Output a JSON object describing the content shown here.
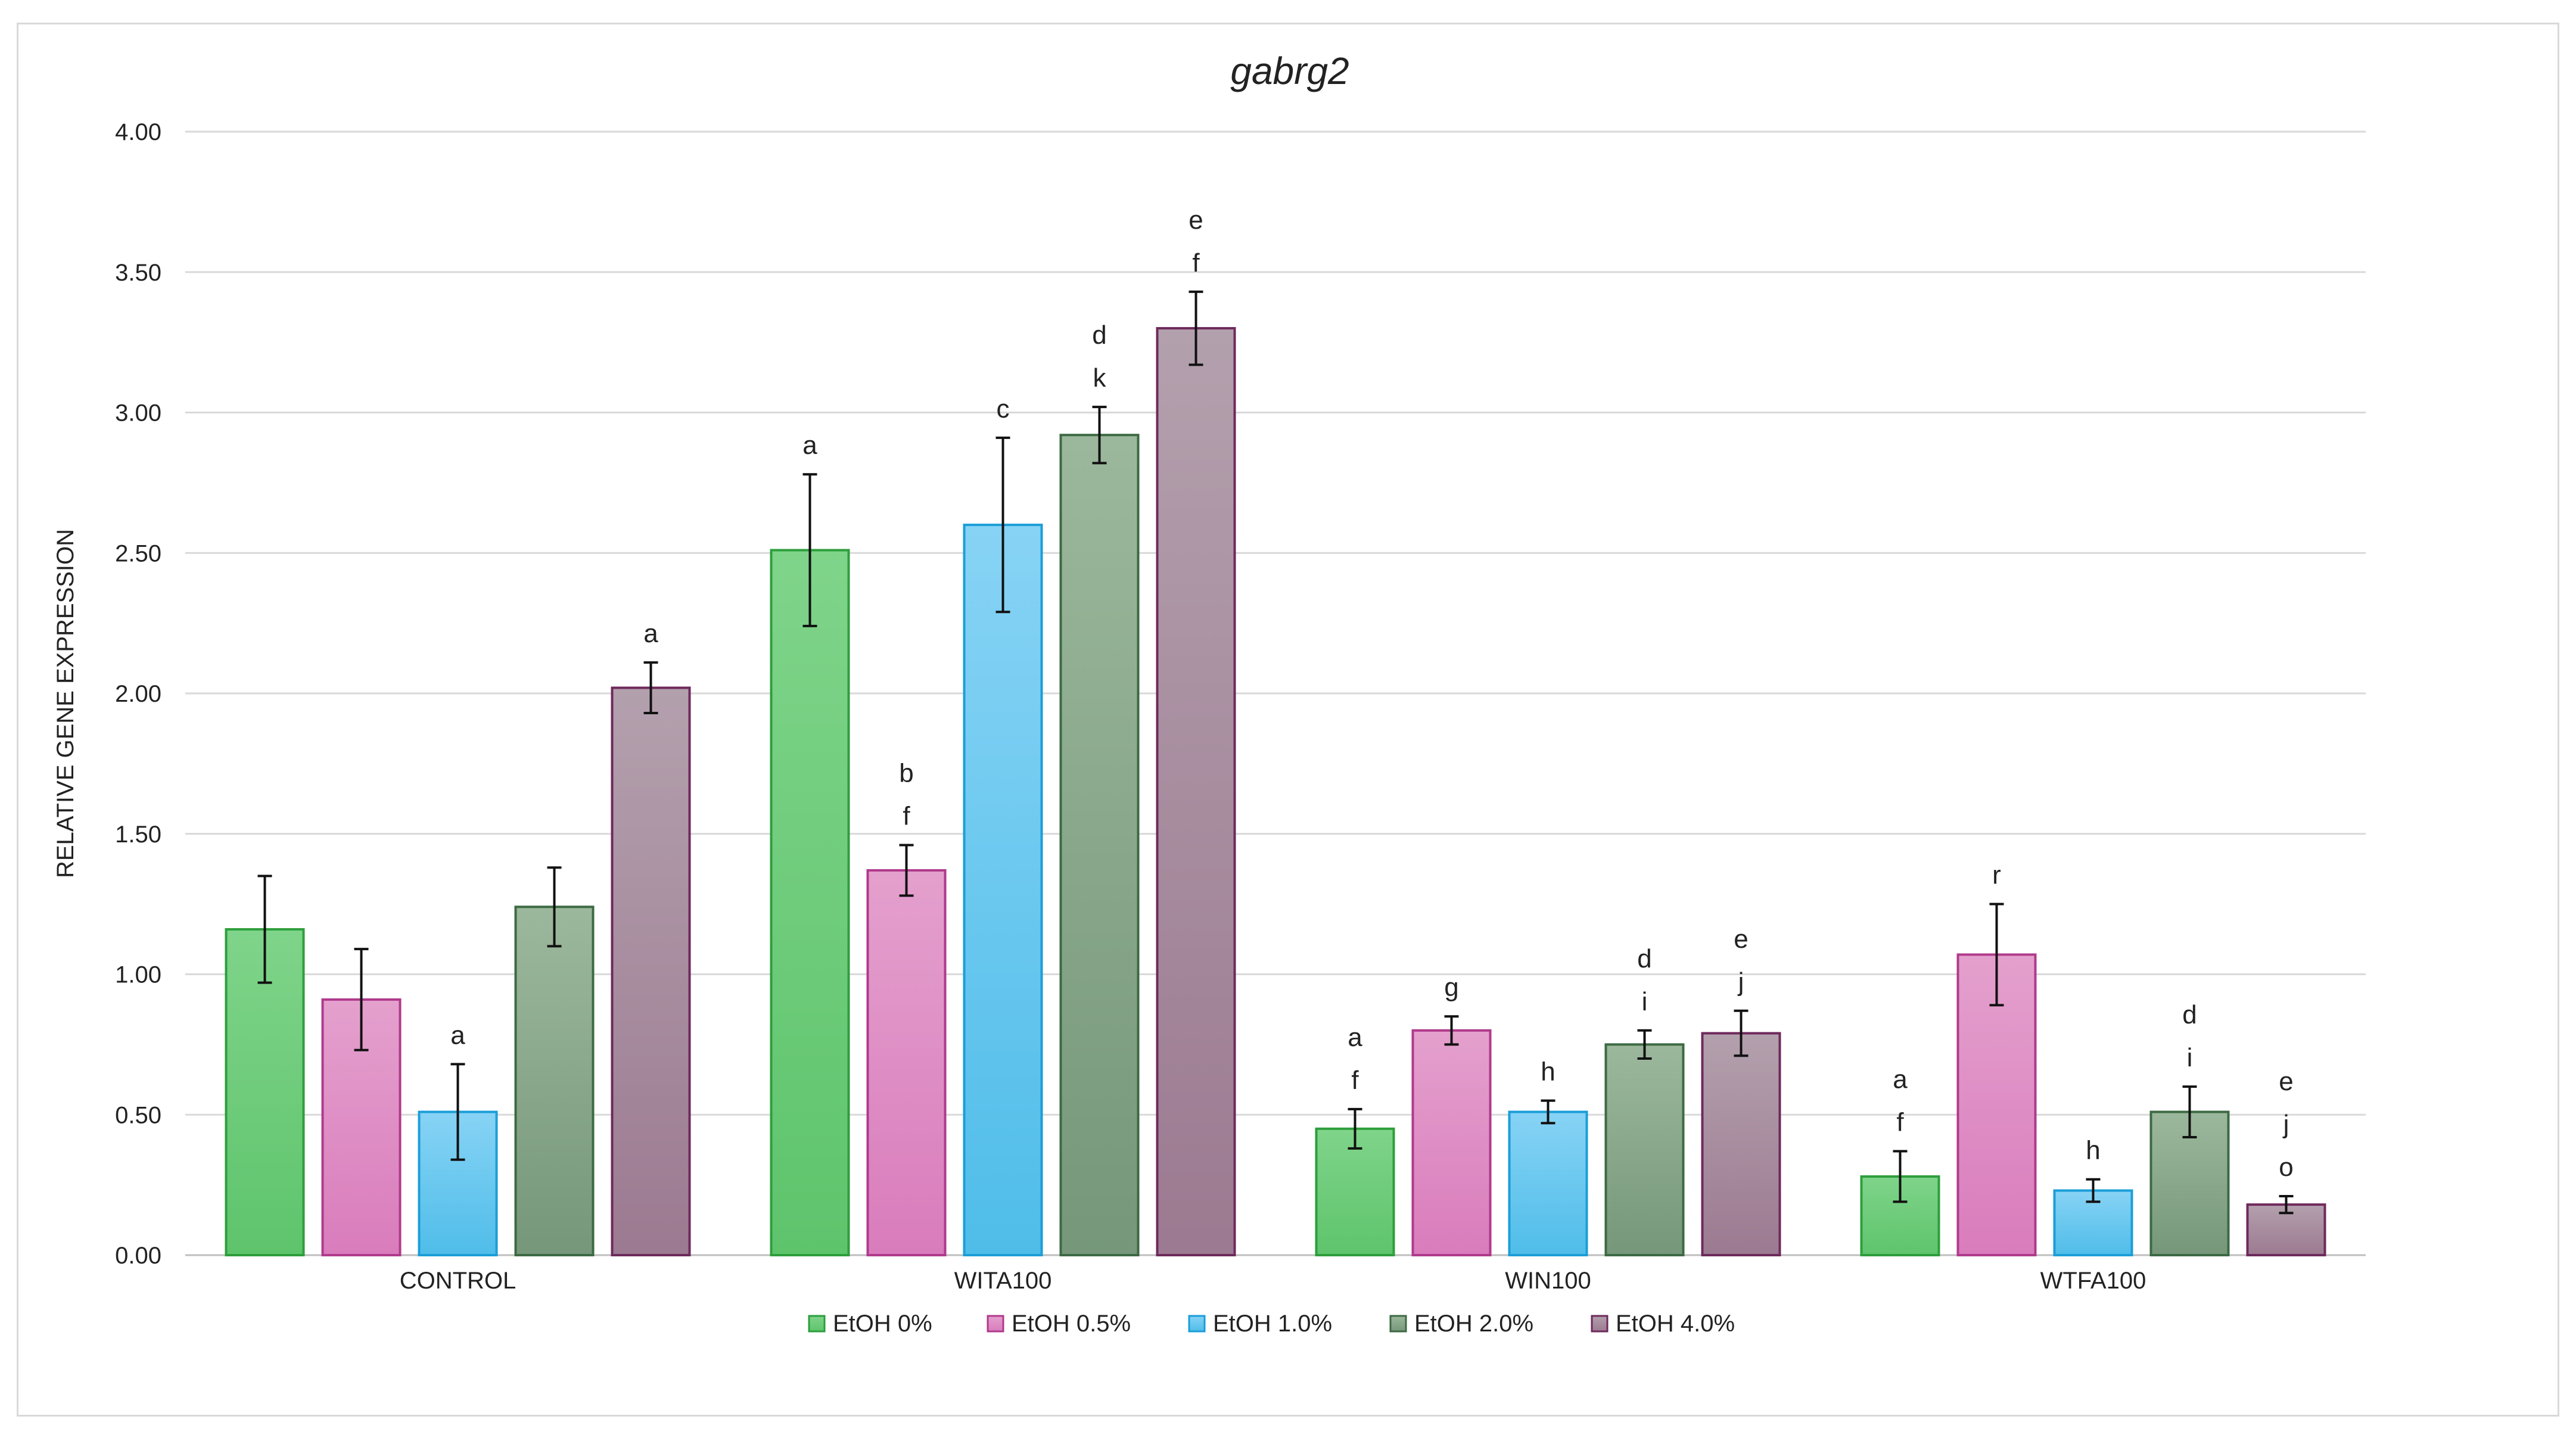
{
  "chart_data": {
    "type": "bar",
    "title": "gabrg2",
    "xlabel": "",
    "ylabel": "RELATIVE GENE EXPRESSION",
    "ylim": [
      0,
      4
    ],
    "yticks": [
      "0.00",
      "0.50",
      "1.00",
      "1.50",
      "2.00",
      "2.50",
      "3.00",
      "3.50",
      "4.00"
    ],
    "grid": true,
    "legend_position": "bottom",
    "categories": [
      "CONTROL",
      "WITA100",
      "WIN100",
      "WTFA100"
    ],
    "series": [
      {
        "name": "EtOH 0%",
        "fill": "#7fd48a",
        "fill_dark": "#5ec46c",
        "stroke": "#2e9e3c",
        "values": [
          1.16,
          2.51,
          0.45,
          0.28
        ],
        "errors": [
          0.19,
          0.27,
          0.07,
          0.09
        ],
        "labels": [
          [],
          [
            "a"
          ],
          [
            "a",
            "f"
          ],
          [
            "a",
            "f"
          ]
        ]
      },
      {
        "name": "EtOH 0.5%",
        "fill": "#e4a0cd",
        "fill_dark": "#d97cbc",
        "stroke": "#b03a8c",
        "values": [
          0.91,
          1.37,
          0.8,
          1.07
        ],
        "errors": [
          0.18,
          0.09,
          0.05,
          0.18
        ],
        "labels": [
          [],
          [
            "b",
            "f"
          ],
          [
            "g"
          ],
          [
            "r"
          ]
        ]
      },
      {
        "name": "EtOH 1.0%",
        "fill": "#87d3f5",
        "fill_dark": "#4fbde9",
        "stroke": "#1b9ed8",
        "values": [
          0.51,
          2.6,
          0.51,
          0.23
        ],
        "errors": [
          0.17,
          0.31,
          0.04,
          0.04
        ],
        "labels": [
          [
            "a"
          ],
          [
            "c"
          ],
          [
            "h"
          ],
          [
            "h"
          ]
        ]
      },
      {
        "name": "EtOH 2.0%",
        "fill": "#9cb89c",
        "fill_dark": "#76977a",
        "stroke": "#3c6a43",
        "values": [
          1.24,
          2.92,
          0.75,
          0.51
        ],
        "errors": [
          0.14,
          0.1,
          0.05,
          0.09
        ],
        "labels": [
          [],
          [
            "d",
            "k"
          ],
          [
            "d",
            "i"
          ],
          [
            "d",
            "i"
          ]
        ]
      },
      {
        "name": "EtOH 4.0%",
        "fill": "#b3a0ad",
        "fill_dark": "#9c7a91",
        "stroke": "#6e2a5c",
        "values": [
          2.02,
          3.3,
          0.79,
          0.18
        ],
        "errors": [
          0.09,
          0.13,
          0.08,
          0.03
        ],
        "labels": [
          [
            "a"
          ],
          [
            "e",
            "f"
          ],
          [
            "e",
            "j"
          ],
          [
            "e",
            "j",
            "o"
          ]
        ]
      }
    ]
  }
}
